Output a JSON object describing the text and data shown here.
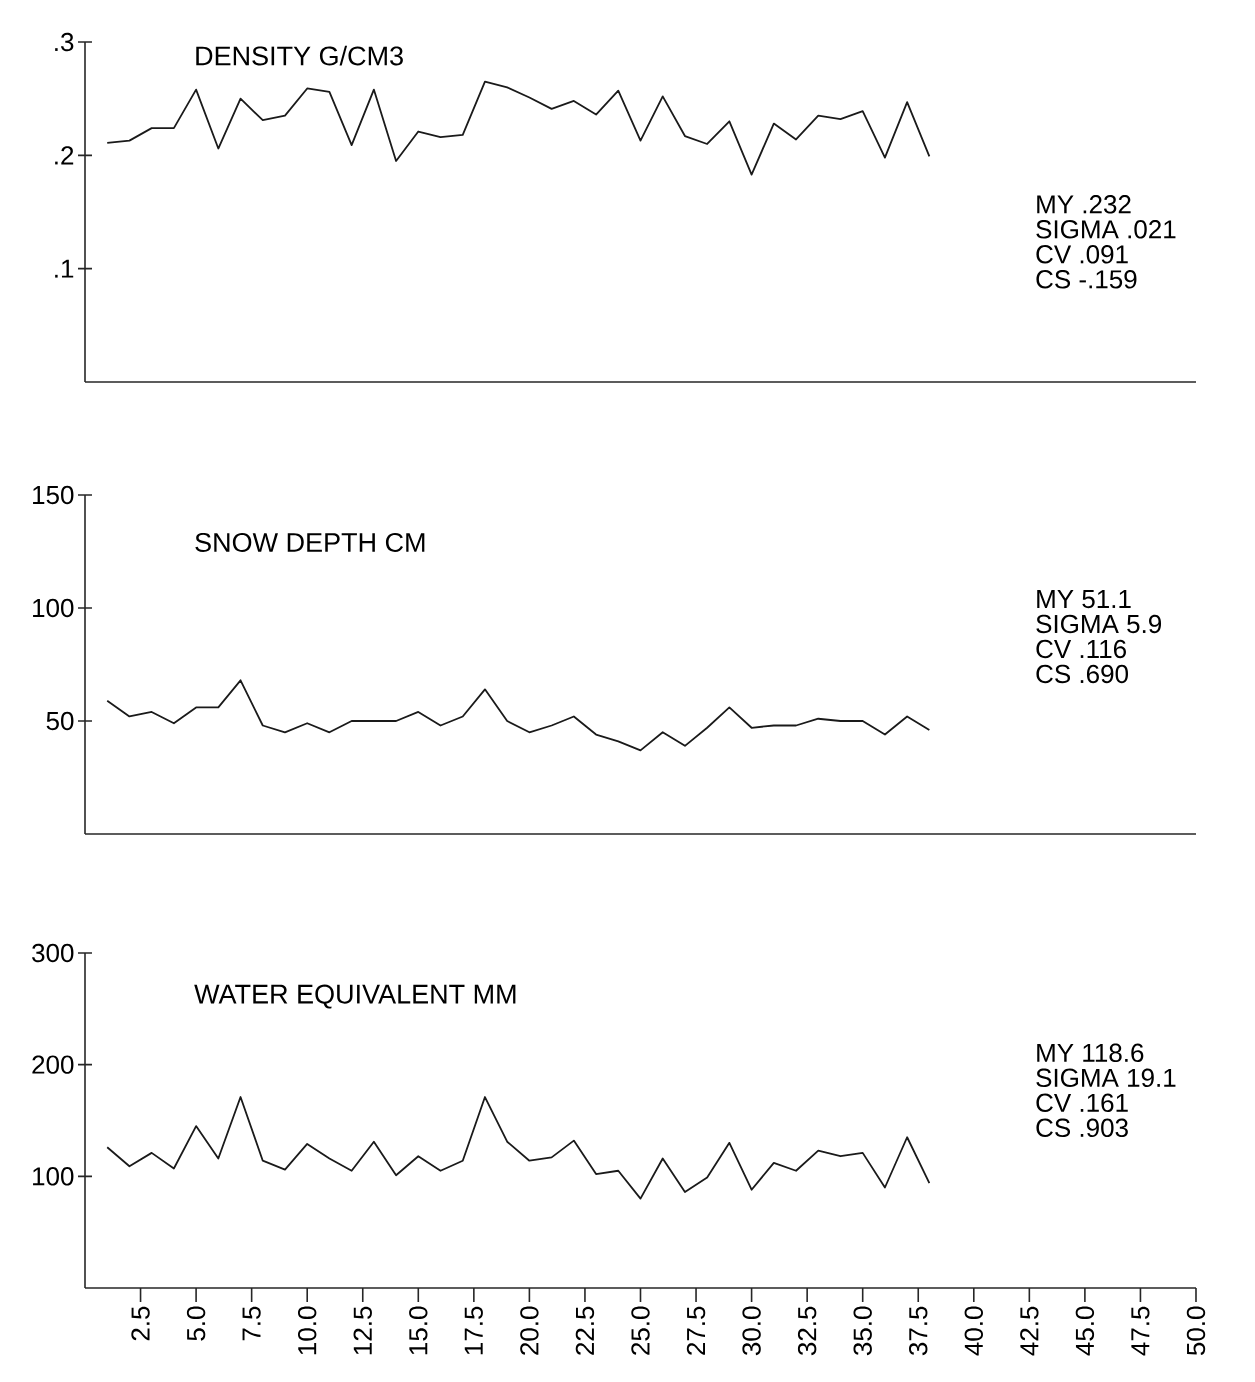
{
  "chart_data": [
    {
      "type": "line",
      "title": "DENSITY G/CM3",
      "color": "#1a1a1a",
      "tick_labels": "y",
      "x": [
        1,
        2,
        3,
        4,
        5,
        6,
        7,
        8,
        9,
        10,
        11,
        12,
        13,
        14,
        15,
        16,
        17,
        18,
        19,
        20,
        21,
        22,
        23,
        24,
        25,
        26,
        27,
        28,
        29,
        30,
        31,
        32,
        33,
        34,
        35,
        36,
        37,
        38
      ],
      "values": [
        0.211,
        0.213,
        0.224,
        0.224,
        0.258,
        0.206,
        0.25,
        0.231,
        0.235,
        0.259,
        0.256,
        0.209,
        0.258,
        0.195,
        0.221,
        0.216,
        0.218,
        0.265,
        0.26,
        0.251,
        0.241,
        0.248,
        0.236,
        0.257,
        0.213,
        0.252,
        0.217,
        0.21,
        0.23,
        0.183,
        0.228,
        0.214,
        0.235,
        0.232,
        0.239,
        0.198,
        0.247,
        0.199
      ],
      "xlim": [
        0,
        50
      ],
      "ylim": [
        0,
        0.3
      ],
      "yticks": [
        {
          "value": 0.1,
          "label": ".1"
        },
        {
          "value": 0.2,
          "label": ".2"
        },
        {
          "value": 0.3,
          "label": ".3"
        }
      ],
      "annotations": [
        "MY .232",
        "SIGMA .021",
        "CV .091",
        "CS -.159"
      ]
    },
    {
      "type": "line",
      "title": "SNOW DEPTH CM",
      "color": "#1a1a1a",
      "tick_labels": "y",
      "x": [
        1,
        2,
        3,
        4,
        5,
        6,
        7,
        8,
        9,
        10,
        11,
        12,
        13,
        14,
        15,
        16,
        17,
        18,
        19,
        20,
        21,
        22,
        23,
        24,
        25,
        26,
        27,
        28,
        29,
        30,
        31,
        32,
        33,
        34,
        35,
        36,
        37,
        38
      ],
      "values": [
        59,
        52,
        54,
        49,
        56,
        56,
        68,
        48,
        45,
        49,
        45,
        50,
        50,
        50,
        54,
        48,
        52,
        64,
        50,
        45,
        48,
        52,
        44,
        41,
        37,
        45,
        39,
        47,
        56,
        47,
        48,
        48,
        51,
        50,
        50,
        44,
        52,
        46
      ],
      "xlim": [
        0,
        50
      ],
      "ylim": [
        0,
        150
      ],
      "yticks": [
        50,
        100,
        150
      ],
      "annotations": [
        "MY 51.1",
        "SIGMA 5.9",
        "CV .116",
        "CS .690"
      ]
    },
    {
      "type": "line",
      "title": "WATER EQUIVALENT MM",
      "color": "#1a1a1a",
      "x": [
        1,
        2,
        3,
        4,
        5,
        6,
        7,
        8,
        9,
        10,
        11,
        12,
        13,
        14,
        15,
        16,
        17,
        18,
        19,
        20,
        21,
        22,
        23,
        24,
        25,
        26,
        27,
        28,
        29,
        30,
        31,
        32,
        33,
        34,
        35,
        36,
        37,
        38
      ],
      "values": [
        126,
        109,
        121,
        107,
        145,
        116,
        171,
        114,
        106,
        129,
        116,
        105,
        131,
        101,
        118,
        105,
        114,
        171,
        131,
        114,
        117,
        132,
        102,
        105,
        80,
        116,
        86,
        99,
        130,
        88,
        112,
        105,
        123,
        118,
        121,
        90,
        135,
        94
      ],
      "xlim": [
        0,
        50
      ],
      "ylim": [
        0,
        300
      ],
      "yticks": [
        100,
        200,
        300
      ],
      "xticks": [
        {
          "value": 2.5,
          "label": "2.5"
        },
        {
          "value": 5,
          "label": "5.0"
        },
        {
          "value": 7.5,
          "label": "7.5"
        },
        {
          "value": 10,
          "label": "10.0"
        },
        {
          "value": 12.5,
          "label": "12.5"
        },
        {
          "value": 15,
          "label": "15.0"
        },
        {
          "value": 17.5,
          "label": "17.5"
        },
        {
          "value": 20,
          "label": "20.0"
        },
        {
          "value": 22.5,
          "label": "22.5"
        },
        {
          "value": 25,
          "label": "25.0"
        },
        {
          "value": 27.5,
          "label": "27.5"
        },
        {
          "value": 30,
          "label": "30.0"
        },
        {
          "value": 32.5,
          "label": "32.5"
        },
        {
          "value": 35,
          "label": "35.0"
        },
        {
          "value": 37.5,
          "label": "37.5"
        },
        {
          "value": 40,
          "label": "40.0"
        },
        {
          "value": 42.5,
          "label": "42.5"
        },
        {
          "value": 45,
          "label": "45.0"
        },
        {
          "value": 47.5,
          "label": "47.5"
        },
        {
          "value": 50,
          "label": "50.0"
        }
      ],
      "annotations": [
        "MY 118.6",
        "SIGMA 19.1",
        "CV .161",
        "CS .903"
      ]
    }
  ]
}
